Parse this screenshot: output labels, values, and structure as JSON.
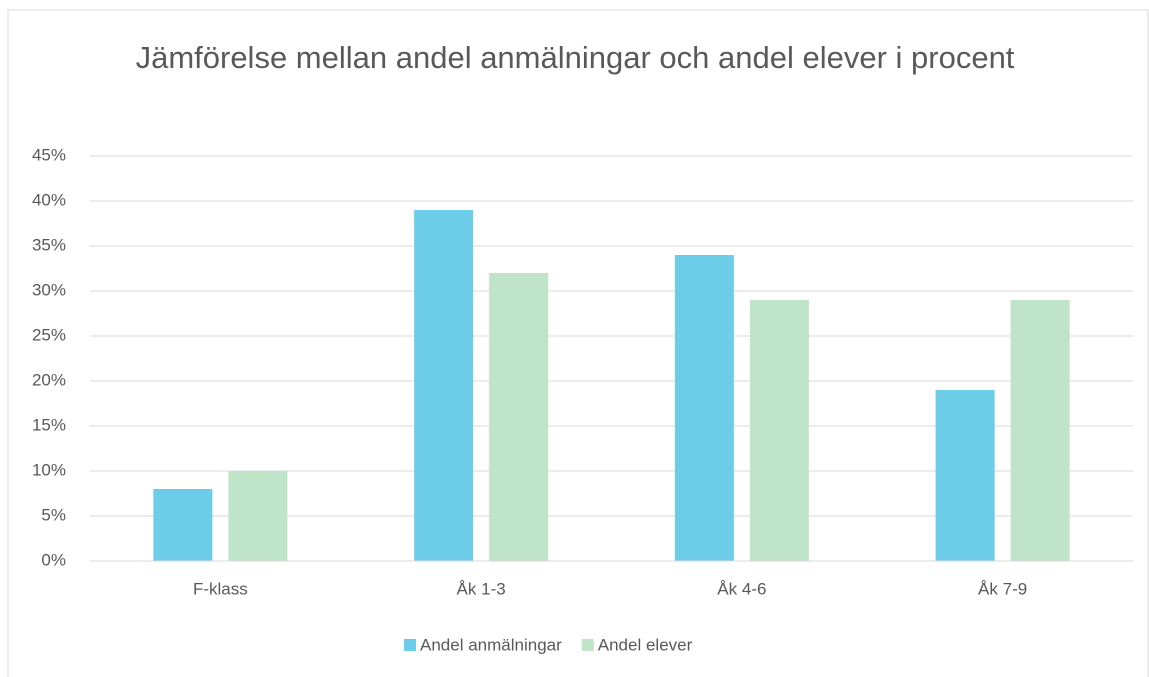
{
  "chart_data": {
    "type": "bar",
    "title": "Jämförelse mellan andel anmälningar och andel elever i procent",
    "categories": [
      "F-klass",
      "Åk 1-3",
      "Åk 4-6",
      "Åk 7-9"
    ],
    "series": [
      {
        "name": "Andel anmälningar",
        "color": "#6dcde9",
        "values": [
          8,
          39,
          34,
          19
        ]
      },
      {
        "name": "Andel elever",
        "color": "#c0e4c8",
        "values": [
          10,
          32,
          29,
          29
        ]
      }
    ],
    "ylim": [
      0,
      45
    ],
    "yticks": [
      {
        "value": 0,
        "label": "0%"
      },
      {
        "value": 5,
        "label": "5%"
      },
      {
        "value": 10,
        "label": "10%"
      },
      {
        "value": 15,
        "label": "15%"
      },
      {
        "value": 20,
        "label": "20%"
      },
      {
        "value": 25,
        "label": "25%"
      },
      {
        "value": 30,
        "label": "30%"
      },
      {
        "value": 35,
        "label": "35%"
      },
      {
        "value": 40,
        "label": "40%"
      },
      {
        "value": 45,
        "label": "45%"
      }
    ],
    "grid": true,
    "legend": "bottom"
  }
}
